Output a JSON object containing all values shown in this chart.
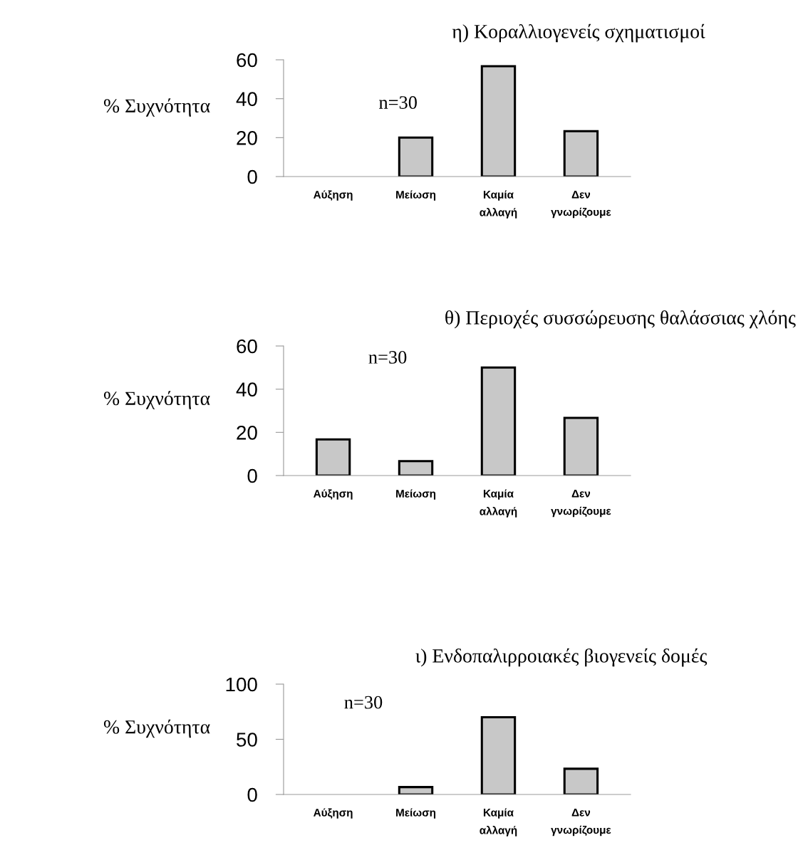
{
  "chart_data": [
    {
      "type": "bar",
      "title": "η) Κοραλλιογενείς σχηματισμοί",
      "ylabel": "% Συχνότητα",
      "categories": [
        "Αύξηση",
        "Μείωση",
        "Καμία\nαλλαγή",
        "Δεν\nγνωρίζουμε"
      ],
      "values": [
        0,
        20,
        56.7,
        23.3
      ],
      "color": "#c8c8c8",
      "ylim": [
        0,
        60
      ],
      "yticks": [
        0,
        20,
        40,
        60
      ],
      "annotations": [
        "n=30"
      ],
      "grid": false,
      "legend": false
    },
    {
      "type": "bar",
      "title": "θ) Περιοχές συσσώρευσης θαλάσσιας χλόης",
      "ylabel": "% Συχνότητα",
      "categories": [
        "Αύξηση",
        "Μείωση",
        "Καμία\nαλλαγή",
        "Δεν\nγνωρίζουμε"
      ],
      "values": [
        16.7,
        6.7,
        50,
        26.7
      ],
      "color": "#c8c8c8",
      "ylim": [
        0,
        60
      ],
      "yticks": [
        0,
        20,
        40,
        60
      ],
      "annotations": [
        "n=30"
      ],
      "grid": false,
      "legend": false
    },
    {
      "type": "bar",
      "title": "ι) Ενδοπαλιρροιακές βιογενείς δομές",
      "ylabel": "% Συχνότητα",
      "categories": [
        "Αύξηση",
        "Μείωση",
        "Καμία\nαλλαγή",
        "Δεν\nγνωρίζουμε"
      ],
      "values": [
        0,
        6.7,
        70,
        23.3
      ],
      "color": "#c8c8c8",
      "ylim": [
        0,
        100
      ],
      "yticks": [
        0,
        50,
        100
      ],
      "annotations": [
        "n=30"
      ],
      "grid": false,
      "legend": false
    }
  ]
}
